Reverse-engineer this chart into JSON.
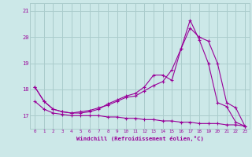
{
  "xlabel": "Windchill (Refroidissement éolien,°C)",
  "x": [
    0,
    1,
    2,
    3,
    4,
    5,
    6,
    7,
    8,
    9,
    10,
    11,
    12,
    13,
    14,
    15,
    16,
    17,
    18,
    19,
    20,
    21,
    22,
    23
  ],
  "line1": [
    18.1,
    17.55,
    17.25,
    17.15,
    17.1,
    17.1,
    17.15,
    17.25,
    17.45,
    17.6,
    17.75,
    17.85,
    18.1,
    18.55,
    18.55,
    18.35,
    19.55,
    20.65,
    19.9,
    19.0,
    17.5,
    17.35,
    16.75,
    16.6
  ],
  "line2": [
    18.1,
    17.55,
    17.25,
    17.15,
    17.1,
    17.15,
    17.2,
    17.3,
    17.4,
    17.55,
    17.7,
    17.75,
    17.95,
    18.15,
    18.3,
    18.75,
    19.55,
    20.35,
    20.0,
    19.85,
    19.0,
    17.5,
    17.3,
    16.6
  ],
  "line3": [
    17.55,
    17.25,
    17.1,
    17.05,
    17.0,
    17.0,
    17.0,
    17.0,
    16.95,
    16.95,
    16.9,
    16.9,
    16.85,
    16.85,
    16.8,
    16.8,
    16.75,
    16.75,
    16.7,
    16.7,
    16.7,
    16.65,
    16.65,
    16.6
  ],
  "color": "#990099",
  "bg_color": "#cce8e8",
  "grid_color": "#aacccc",
  "ylim": [
    16.5,
    21.3
  ],
  "yticks": [
    17,
    18,
    19,
    20,
    21
  ],
  "xticks": [
    0,
    1,
    2,
    3,
    4,
    5,
    6,
    7,
    8,
    9,
    10,
    11,
    12,
    13,
    14,
    15,
    16,
    17,
    18,
    19,
    20,
    21,
    22,
    23
  ]
}
